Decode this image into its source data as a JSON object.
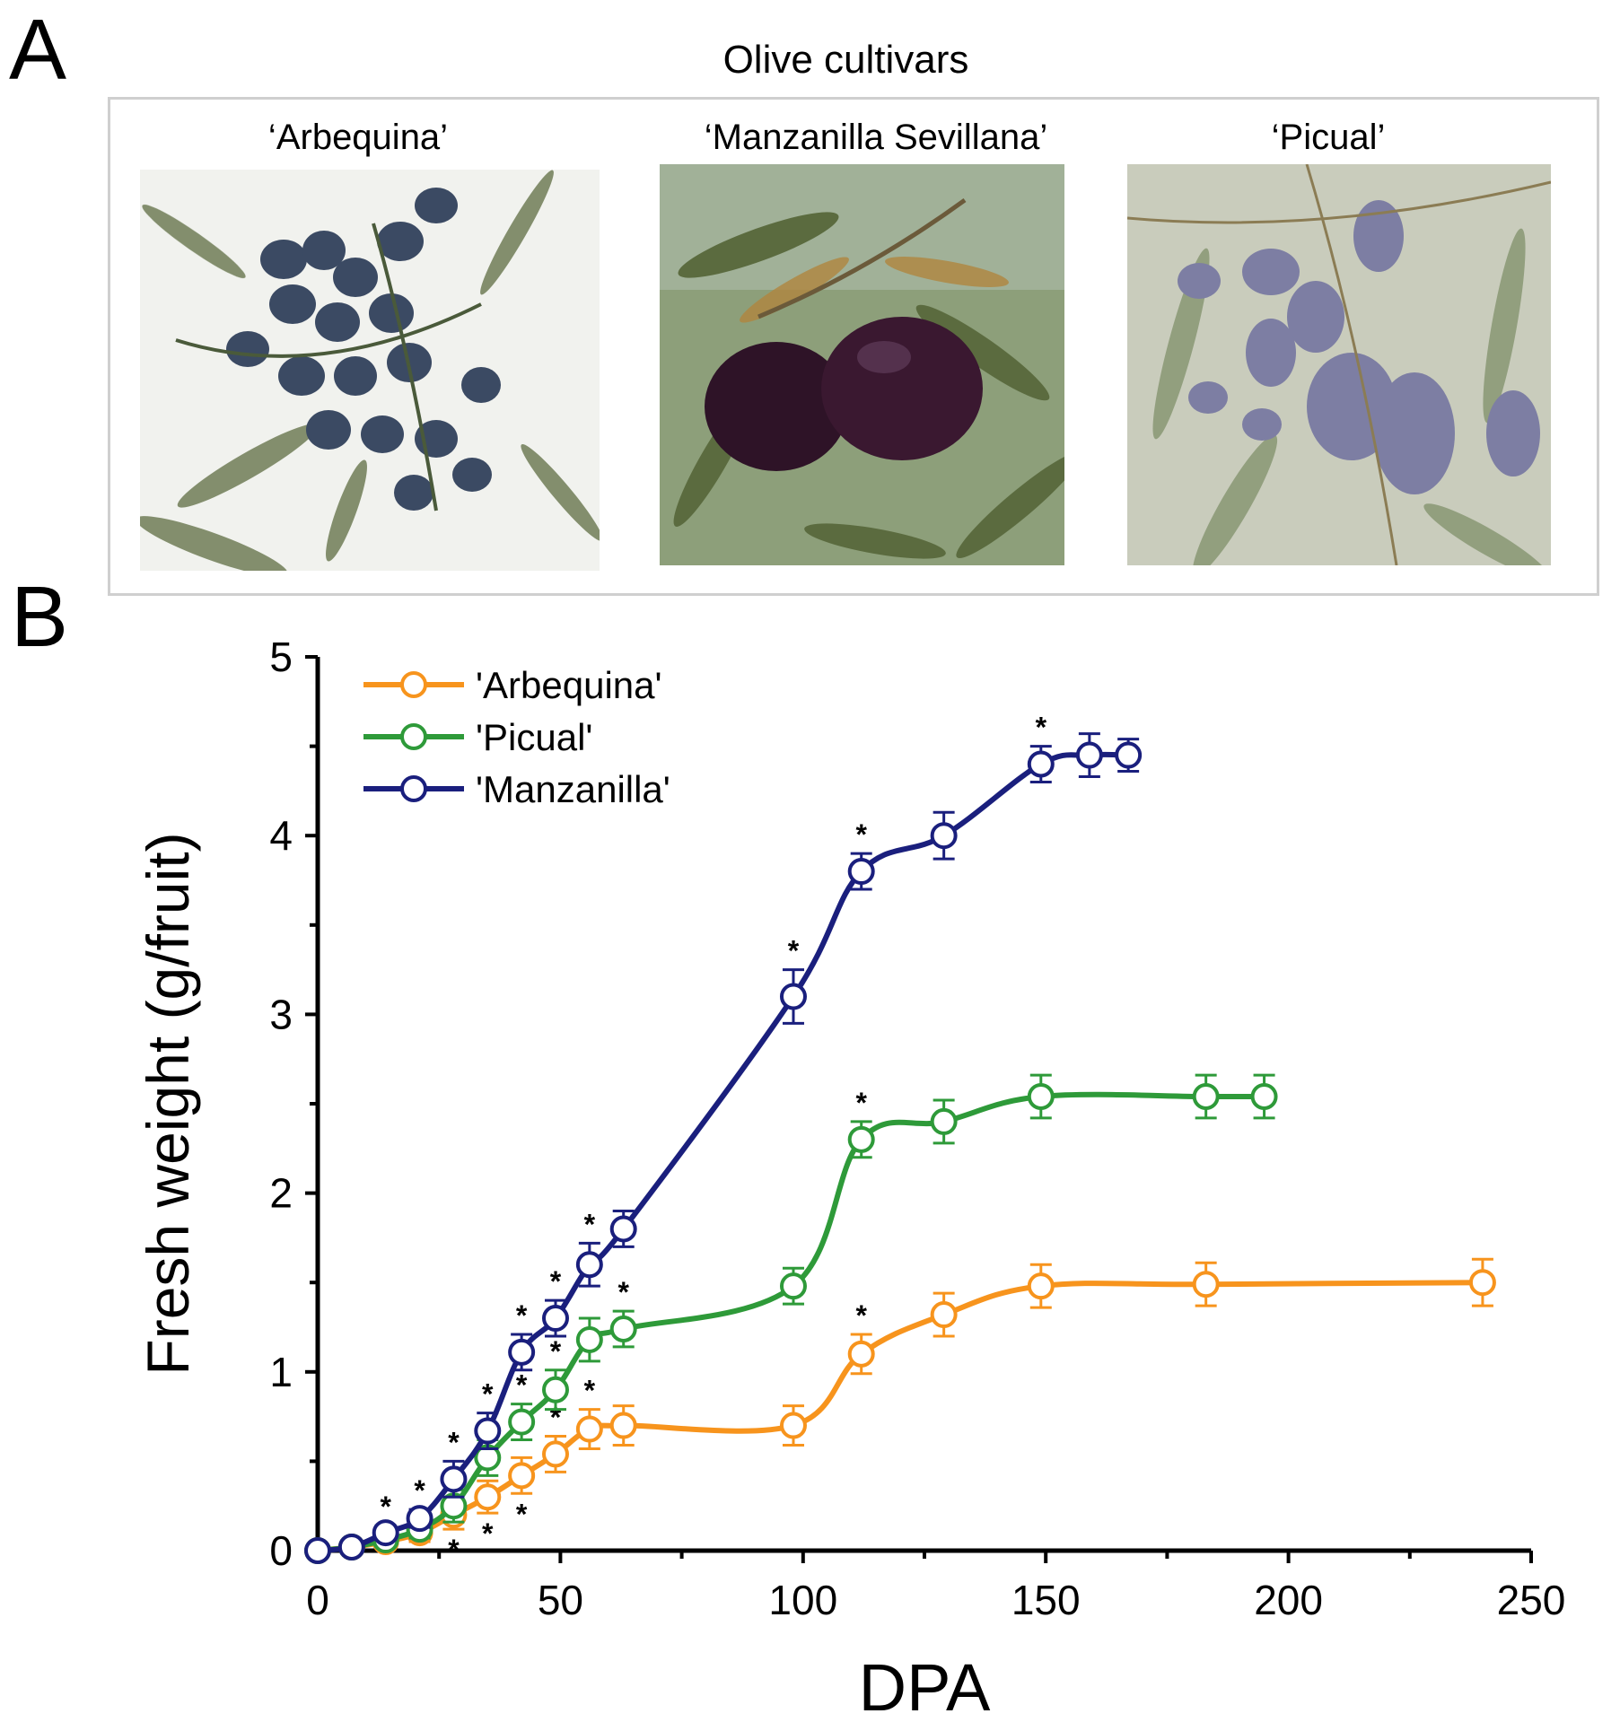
{
  "panels": {
    "a_label": "A",
    "b_label": "B"
  },
  "photos": {
    "title": "Olive cultivars",
    "items": [
      {
        "label": "‘Arbequina’",
        "fruit_color": "#3b4a63",
        "background_color": "#f1f2ee"
      },
      {
        "label": "‘Manzanilla Sevillana’",
        "fruit_color": "#3a1830",
        "background_color": "#8d9f7a"
      },
      {
        "label": "‘Picual’",
        "fruit_color": "#7d7ea3",
        "background_color": "#c9ccbc"
      }
    ]
  },
  "chart_data": {
    "type": "line",
    "xlabel": "DPA",
    "ylabel": "Fresh weight (g/fruit)",
    "xlim": [
      0,
      250
    ],
    "ylim": [
      0,
      5
    ],
    "x_ticks": [
      0,
      50,
      100,
      150,
      200,
      250
    ],
    "y_ticks": [
      0,
      1,
      2,
      3,
      4,
      5
    ],
    "legend_position": "top-left",
    "significance_marker": "*",
    "series": [
      {
        "name": "'Arbequina'",
        "color": "#f7941d",
        "x": [
          0,
          7,
          14,
          21,
          28,
          35,
          42,
          49,
          56,
          63,
          98,
          112,
          129,
          149,
          183,
          240
        ],
        "y": [
          0.0,
          0.02,
          0.05,
          0.1,
          0.2,
          0.3,
          0.42,
          0.54,
          0.68,
          0.7,
          0.7,
          1.1,
          1.32,
          1.48,
          1.49,
          1.5
        ],
        "error": [
          0.02,
          0.02,
          0.03,
          0.05,
          0.08,
          0.09,
          0.1,
          0.1,
          0.11,
          0.11,
          0.11,
          0.11,
          0.12,
          0.12,
          0.12,
          0.13
        ],
        "significant": [
          false,
          false,
          false,
          false,
          true,
          true,
          true,
          true,
          true,
          false,
          false,
          true,
          false,
          false,
          false,
          false
        ],
        "star_side": "below",
        "star_above_x": [
          49,
          56,
          112
        ]
      },
      {
        "name": "'Picual'",
        "color": "#2e9a39",
        "x": [
          0,
          7,
          14,
          21,
          28,
          35,
          42,
          49,
          56,
          63,
          98,
          112,
          129,
          149,
          183,
          195
        ],
        "y": [
          0.0,
          0.02,
          0.06,
          0.12,
          0.25,
          0.52,
          0.72,
          0.9,
          1.18,
          1.24,
          1.48,
          2.3,
          2.4,
          2.54,
          2.54,
          2.54
        ],
        "error": [
          0.02,
          0.02,
          0.03,
          0.05,
          0.09,
          0.1,
          0.1,
          0.11,
          0.12,
          0.1,
          0.1,
          0.1,
          0.12,
          0.12,
          0.12,
          0.12
        ],
        "significant": [
          false,
          false,
          false,
          false,
          false,
          false,
          true,
          true,
          false,
          true,
          false,
          true,
          false,
          false,
          false,
          false
        ]
      },
      {
        "name": "'Manzanilla'",
        "color": "#1a1f7d",
        "x": [
          0,
          7,
          14,
          21,
          28,
          35,
          42,
          49,
          56,
          63,
          98,
          112,
          129,
          149,
          159,
          167
        ],
        "y": [
          0.0,
          0.02,
          0.1,
          0.18,
          0.4,
          0.67,
          1.11,
          1.3,
          1.6,
          1.8,
          3.1,
          3.8,
          4.0,
          4.4,
          4.45,
          4.45
        ],
        "error": [
          0.02,
          0.03,
          0.04,
          0.05,
          0.1,
          0.1,
          0.1,
          0.1,
          0.12,
          0.1,
          0.15,
          0.1,
          0.13,
          0.1,
          0.12,
          0.09
        ],
        "significant": [
          false,
          false,
          true,
          true,
          true,
          true,
          true,
          true,
          true,
          false,
          true,
          true,
          false,
          true,
          false,
          false
        ]
      }
    ]
  }
}
